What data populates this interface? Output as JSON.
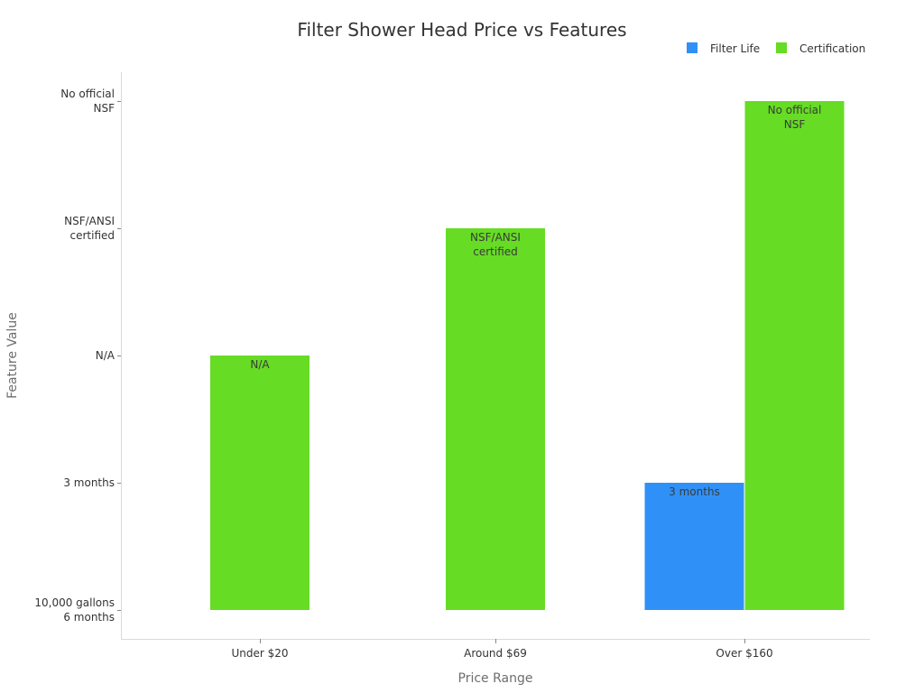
{
  "chart_data": {
    "type": "bar",
    "title": "Filter Shower Head Price vs Features",
    "xlabel": "Price Range",
    "ylabel": "Feature Value",
    "categories": [
      "Under $20",
      "Around $69",
      "Over $160"
    ],
    "y_categories": [
      "10,000 gallons\n6 months",
      "3 months",
      "N/A",
      "NSF/ANSI\ncertified",
      "No official\nNSF"
    ],
    "ylim": [
      0,
      4
    ],
    "legend_position": "top-right",
    "grid": false,
    "series": [
      {
        "name": "Filter Life",
        "color": "#2f91f7",
        "values": [
          0,
          0,
          1
        ],
        "labels": [
          "",
          "",
          "3 months"
        ]
      },
      {
        "name": "Certification",
        "color": "#66dc24",
        "values": [
          2,
          3,
          4
        ],
        "labels": [
          "N/A",
          "NSF/ANSI\ncertified",
          "No official\nNSF"
        ]
      }
    ]
  }
}
